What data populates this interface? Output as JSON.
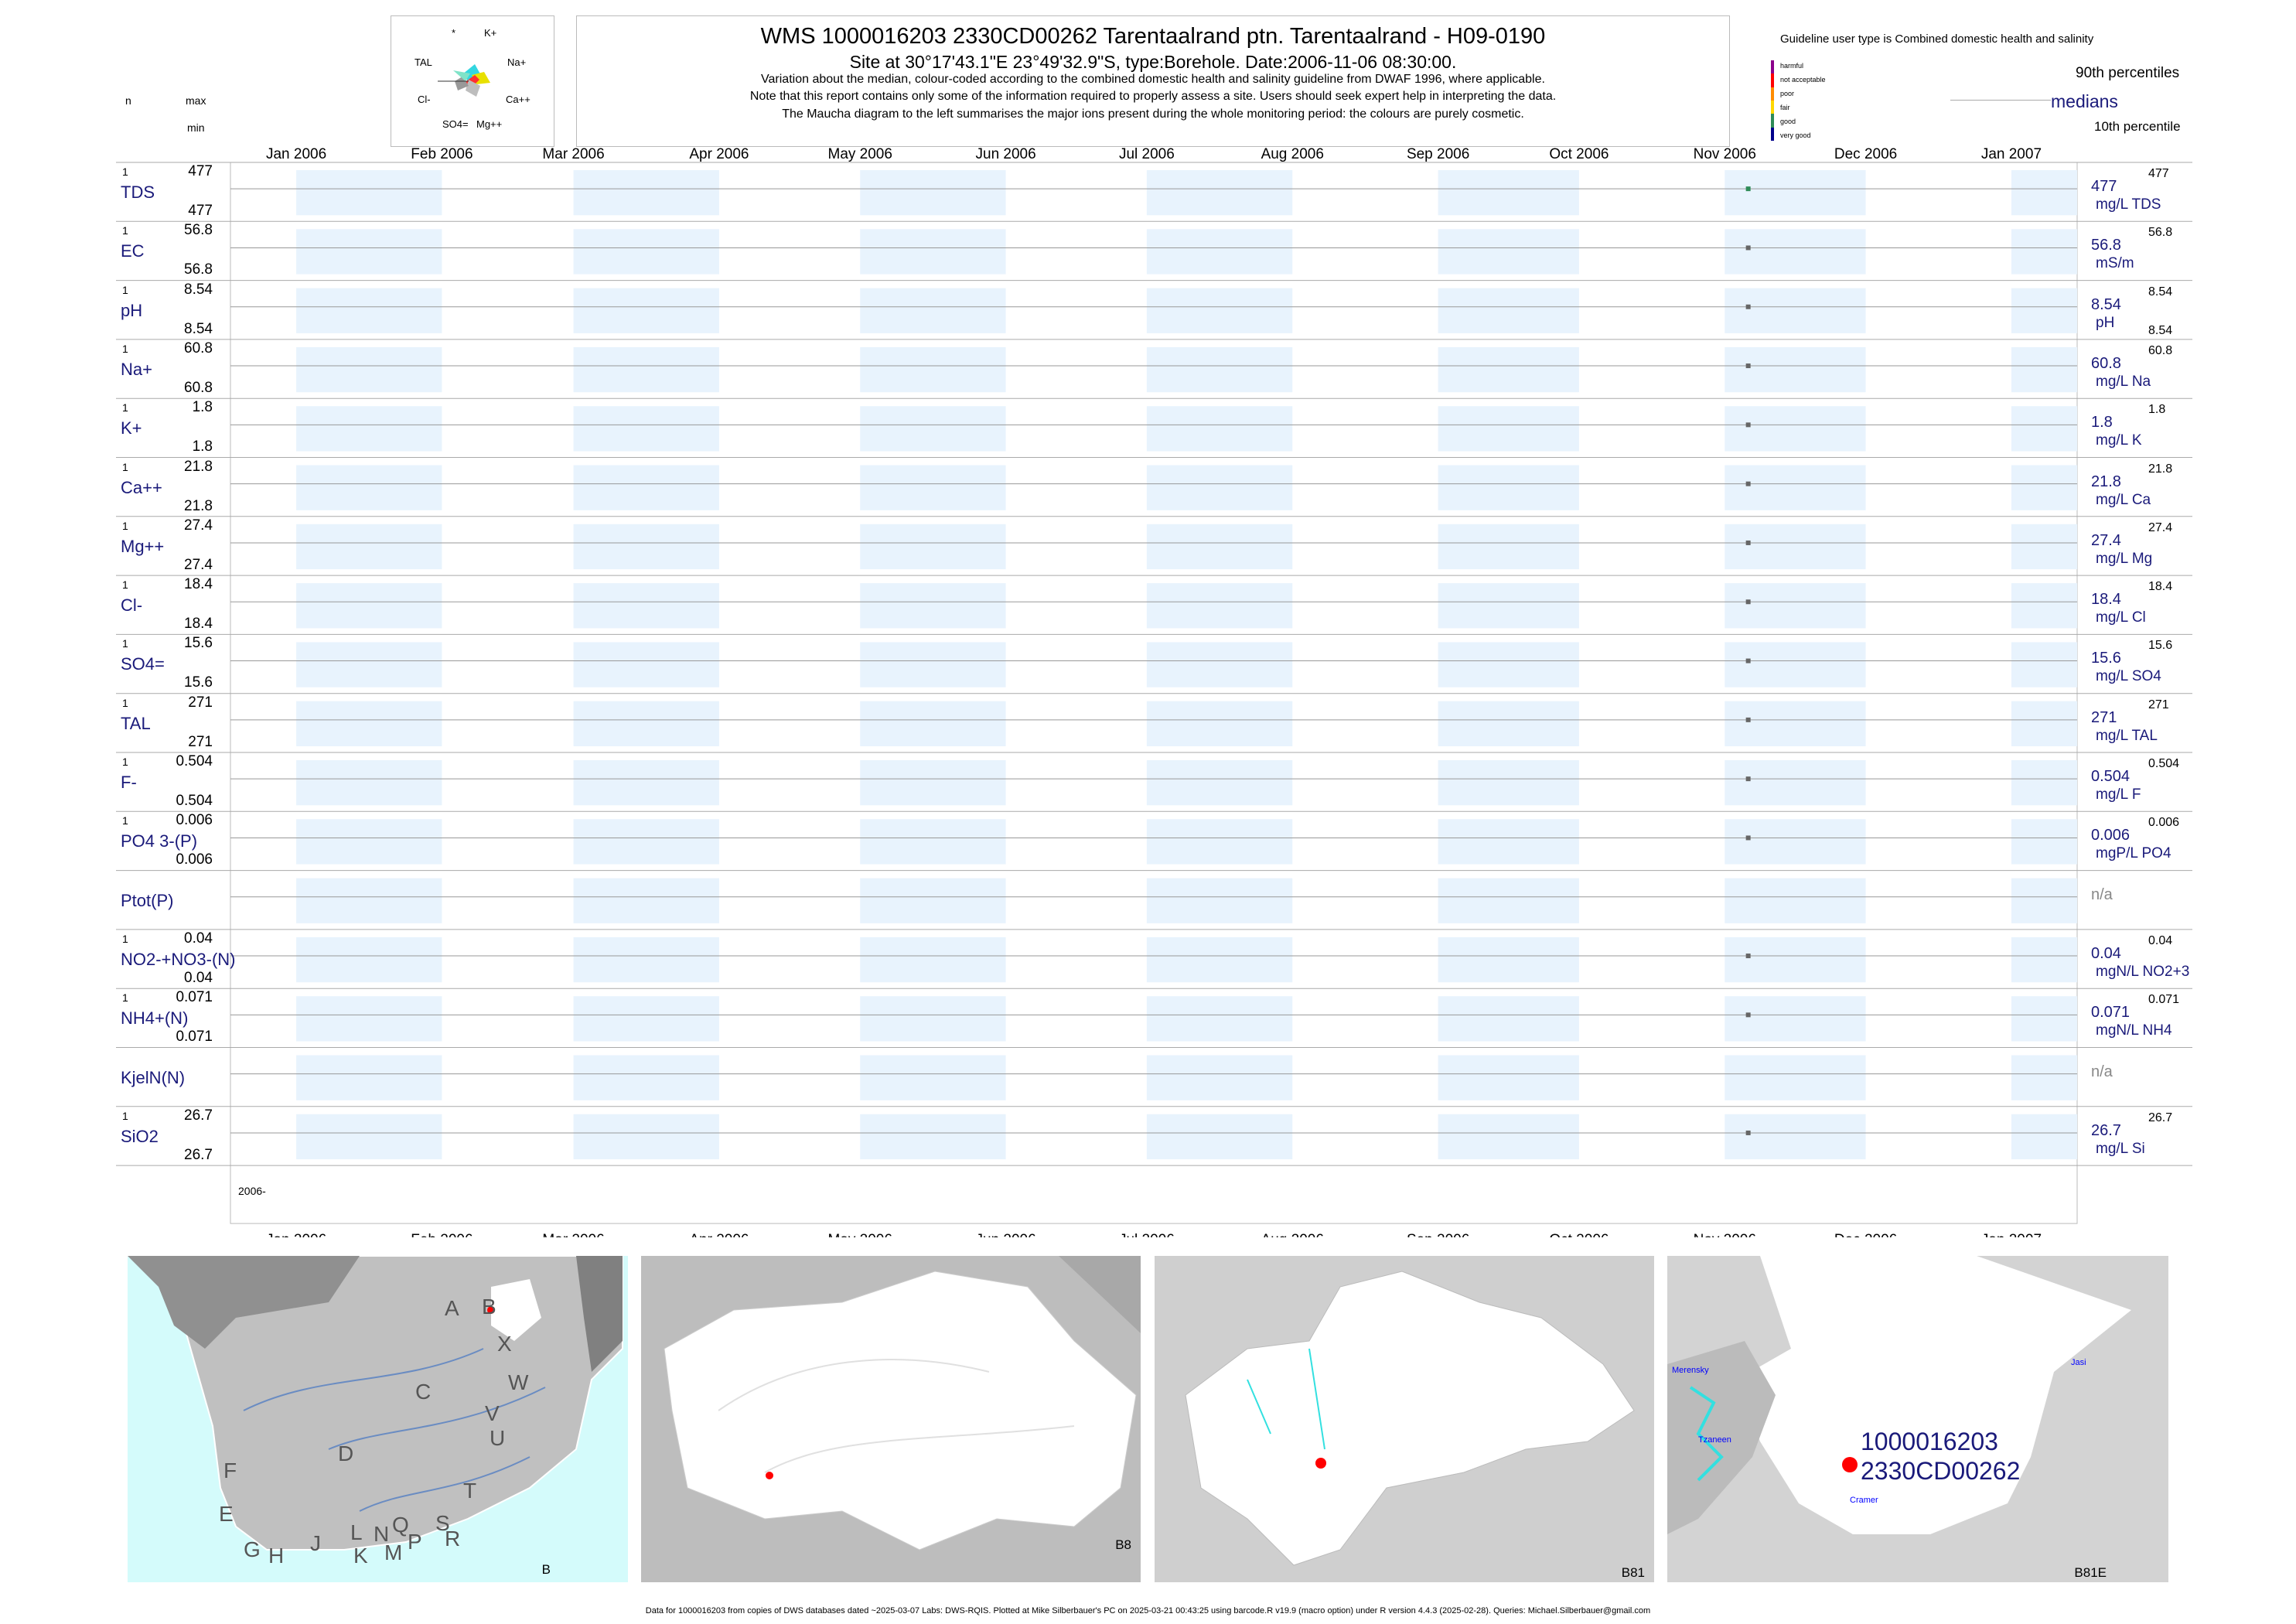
{
  "header": {
    "title": "WMS 1000016203 2330CD00262 Tarentaalrand ptn. Tarentaalrand - H09-0190",
    "subtitle": "Site at 30°17'43.1\"E 23°49'32.9\"S, type:Borehole. Date:2006-11-06 08:30:00.",
    "note1": "Variation about the median,  colour-coded according to the combined domestic health and salinity guideline from DWAF 1996, where applicable.",
    "note2": "Note that this report contains only some of the information required to properly assess a site. Users should seek expert help in interpreting the data.",
    "note3": "The Maucha diagram to the left summarises the major ions present during the whole monitoring period: the colours are purely cosmetic."
  },
  "maucha": {
    "labels": [
      "*",
      "K+",
      "Na+",
      "Ca++",
      "Mg++",
      "SO4=",
      "Cl-",
      "TAL"
    ]
  },
  "left_header": {
    "n": "n",
    "max": "max",
    "min": "min"
  },
  "guideline": {
    "title": "Guideline user type is Combined domestic health and salinity",
    "legend": [
      {
        "label": "harmful",
        "color": "#8b008b"
      },
      {
        "label": "not acceptable",
        "color": "#ff0000"
      },
      {
        "label": "poor",
        "color": "#ff8c00"
      },
      {
        "label": "fair",
        "color": "#ffd700"
      },
      {
        "label": "good",
        "color": "#2e8b57"
      },
      {
        "label": "very good",
        "color": "#00008b"
      }
    ],
    "p90": "90th percentiles",
    "medians": "medians",
    "p10": "10th percentile"
  },
  "chart_data": {
    "type": "scatter",
    "x_ticks": [
      "Jan 2006",
      "Feb 2006",
      "Mar 2006",
      "Apr 2006",
      "May 2006",
      "Jun 2006",
      "Jul 2006",
      "Aug 2006",
      "Sep 2006",
      "Oct 2006",
      "Nov 2006",
      "Dec 2006",
      "Jan 2007"
    ],
    "x_range": [
      "2005-12-18",
      "2007-01-15"
    ],
    "sample_date": "2006-11-06",
    "year_label": "2006-",
    "rows": [
      {
        "label": "TDS",
        "n": "1",
        "max": "477",
        "min": "477",
        "median": "477",
        "p90": "477",
        "p10": "",
        "unit": "mg/L TDS",
        "value": 477,
        "color": "#2e8b57"
      },
      {
        "label": "EC",
        "n": "1",
        "max": "56.8",
        "min": "56.8",
        "median": "56.8",
        "p90": "56.8",
        "p10": "",
        "unit": "mS/m",
        "value": 56.8,
        "color": "#666666"
      },
      {
        "label": "pH",
        "n": "1",
        "max": "8.54",
        "min": "8.54",
        "median": "8.54",
        "p90": "8.54",
        "p10": "8.54",
        "unit": "pH",
        "value": 8.54,
        "color": "#666666"
      },
      {
        "label": "Na+",
        "n": "1",
        "max": "60.8",
        "min": "60.8",
        "median": "60.8",
        "p90": "60.8",
        "p10": "",
        "unit": "mg/L Na",
        "value": 60.8,
        "color": "#666666"
      },
      {
        "label": "K+",
        "n": "1",
        "max": "1.8",
        "min": "1.8",
        "median": "1.8",
        "p90": "1.8",
        "p10": "",
        "unit": "mg/L K",
        "value": 1.8,
        "color": "#666666"
      },
      {
        "label": "Ca++",
        "n": "1",
        "max": "21.8",
        "min": "21.8",
        "median": "21.8",
        "p90": "21.8",
        "p10": "",
        "unit": "mg/L Ca",
        "value": 21.8,
        "color": "#666666"
      },
      {
        "label": "Mg++",
        "n": "1",
        "max": "27.4",
        "min": "27.4",
        "median": "27.4",
        "p90": "27.4",
        "p10": "",
        "unit": "mg/L Mg",
        "value": 27.4,
        "color": "#666666"
      },
      {
        "label": "Cl-",
        "n": "1",
        "max": "18.4",
        "min": "18.4",
        "median": "18.4",
        "p90": "18.4",
        "p10": "",
        "unit": "mg/L Cl",
        "value": 18.4,
        "color": "#666666"
      },
      {
        "label": "SO4=",
        "n": "1",
        "max": "15.6",
        "min": "15.6",
        "median": "15.6",
        "p90": "15.6",
        "p10": "",
        "unit": "mg/L SO4",
        "value": 15.6,
        "color": "#666666"
      },
      {
        "label": "TAL",
        "n": "1",
        "max": "271",
        "min": "271",
        "median": "271",
        "p90": "271",
        "p10": "",
        "unit": "mg/L TAL",
        "value": 271,
        "color": "#666666"
      },
      {
        "label": "F-",
        "n": "1",
        "max": "0.504",
        "min": "0.504",
        "median": "0.504",
        "p90": "0.504",
        "p10": "",
        "unit": "mg/L F",
        "value": 0.504,
        "color": "#666666"
      },
      {
        "label": "PO4 3-(P)",
        "n": "1",
        "max": "0.006",
        "min": "0.006",
        "median": "0.006",
        "p90": "0.006",
        "p10": "",
        "unit": "mgP/L PO4",
        "value": 0.006,
        "color": "#666666"
      },
      {
        "label": "Ptot(P)",
        "n": "",
        "max": "",
        "min": "",
        "median": "n/a",
        "p90": "",
        "p10": "",
        "unit": "",
        "value": null,
        "color": "#666666"
      },
      {
        "label": "NO2-+NO3-(N)",
        "n": "1",
        "max": "0.04",
        "min": "0.04",
        "median": "0.04",
        "p90": "0.04",
        "p10": "",
        "unit": "mgN/L NO2+3",
        "value": 0.04,
        "color": "#666666"
      },
      {
        "label": "NH4+(N)",
        "n": "1",
        "max": "0.071",
        "min": "0.071",
        "median": "0.071",
        "p90": "0.071",
        "p10": "",
        "unit": "mgN/L NH4",
        "value": 0.071,
        "color": "#666666"
      },
      {
        "label": "KjelN(N)",
        "n": "",
        "max": "",
        "min": "",
        "median": "n/a",
        "p90": "",
        "p10": "",
        "unit": "",
        "value": null,
        "color": "#666666"
      },
      {
        "label": "SiO2",
        "n": "1",
        "max": "26.7",
        "min": "26.7",
        "median": "26.7",
        "p90": "26.7",
        "p10": "",
        "unit": "mg/L Si",
        "value": 26.7,
        "color": "#666666"
      }
    ]
  },
  "maps": {
    "m1": {
      "corner": "B",
      "letters": [
        "A",
        "B",
        "X",
        "C",
        "W",
        "V",
        "U",
        "D",
        "F",
        "T",
        "E",
        "S",
        "R",
        "L",
        "N",
        "Q",
        "J",
        "K",
        "M",
        "P",
        "G",
        "H"
      ]
    },
    "m2": {
      "corner": "B8"
    },
    "m3": {
      "corner": "B81"
    },
    "m4": {
      "corner": "B81E",
      "site_id1": "1000016203",
      "site_id2": "2330CD00262",
      "towns": [
        "Merensky",
        "Tzaneen",
        "Cramer",
        "Jasi"
      ]
    }
  },
  "footer": "Data for 1000016203 from copies of DWS databases dated ~2025-03-07 Labs: DWS-RQIS. Plotted at Mike Silberbauer's PC on 2025-03-21 00:43:25 using barcode.R v19.9 (macro option) under R version 4.4.3 (2025-02-28). Queries: Michael.Silberbauer@gmail.com"
}
